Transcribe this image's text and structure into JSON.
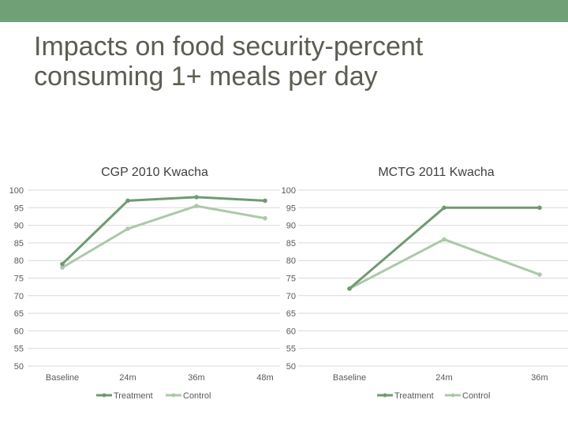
{
  "header": {
    "title_line1": "Impacts on food security-percent",
    "title_line2": "consuming 1+ meals per day"
  },
  "colors": {
    "topbar": "#6fa076",
    "treatment": "#6f9a72",
    "control": "#adc8a9",
    "grid": "#d9d9d9"
  },
  "chart_data": [
    {
      "type": "line",
      "title": "CGP 2010 Kwacha",
      "categories": [
        "Baseline",
        "24m",
        "36m",
        "48m"
      ],
      "ylim": [
        50,
        100
      ],
      "yticks": [
        50,
        55,
        60,
        65,
        70,
        75,
        80,
        85,
        90,
        95,
        100
      ],
      "grid": true,
      "legend": "bottom",
      "series": [
        {
          "name": "Treatment",
          "values": [
            79,
            97,
            98,
            97
          ]
        },
        {
          "name": "Control",
          "values": [
            78,
            89,
            95.5,
            92
          ]
        }
      ]
    },
    {
      "type": "line",
      "title": "MCTG 2011 Kwacha",
      "categories": [
        "Baseline",
        "24m",
        "36m"
      ],
      "ylim": [
        50,
        100
      ],
      "yticks": [
        50,
        55,
        60,
        65,
        70,
        75,
        80,
        85,
        90,
        95,
        100
      ],
      "grid": true,
      "legend": "bottom",
      "series": [
        {
          "name": "Treatment",
          "values": [
            72,
            95,
            95
          ]
        },
        {
          "name": "Control",
          "values": [
            72,
            86,
            76
          ]
        }
      ]
    }
  ]
}
